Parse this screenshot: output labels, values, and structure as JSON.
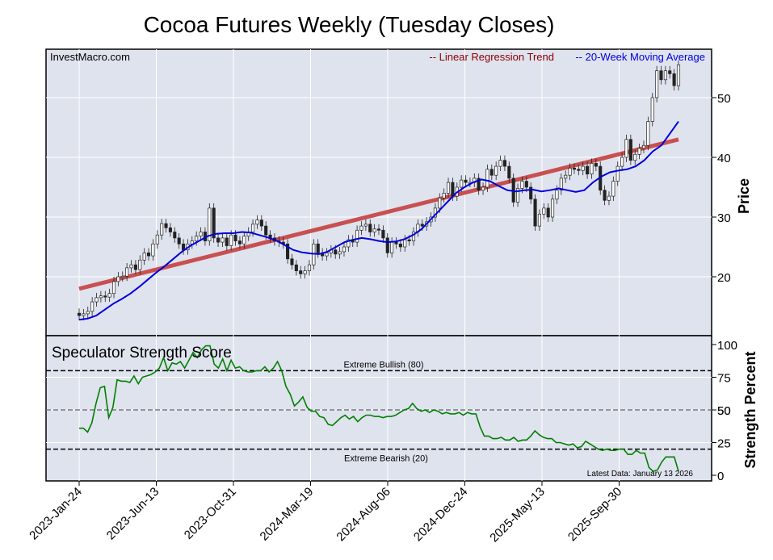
{
  "chart_data": [
    {
      "type": "candlestick",
      "title": "Cocoa Futures Weekly (Tuesday Closes)",
      "watermark": "InvestMacro.com",
      "ylabel": "Price",
      "ylim": [
        10,
        58
      ],
      "yticks": [
        20,
        30,
        40,
        50
      ],
      "xticks": [
        "2023-Jan-24",
        "2023-Jun-13",
        "2023-Oct-31",
        "2024-Mar-19",
        "2024-Aug-06",
        "2024-Dec-24",
        "2025-May-13",
        "2025-Sep-30"
      ],
      "grid": true,
      "legend_position": "top-right",
      "legend": [
        {
          "label": "-- Linear Regression Trend",
          "color": "#8b0000"
        },
        {
          "label": "-- 20-Week Moving Average",
          "color": "#0000dd"
        }
      ],
      "colors": {
        "background": "#dfe3ee",
        "regression": "#c85050",
        "moving_average": "#0000dd",
        "up_candle": "#ffffff",
        "down_candle": "#222222"
      },
      "closes": [
        13.5,
        13.8,
        14.2,
        15.8,
        16.5,
        16.8,
        16.6,
        17.2,
        19.2,
        20.0,
        20.1,
        21.5,
        22.0,
        21.2,
        22.8,
        24.0,
        23.5,
        25.5,
        27.0,
        28.9,
        28.2,
        27.5,
        26.5,
        25.5,
        24.5,
        25.5,
        26.0,
        26.8,
        27.5,
        26.0,
        31.5,
        26.5,
        25.8,
        26.5,
        25.2,
        27.0,
        26.0,
        25.5,
        26.8,
        27.5,
        28.8,
        29.5,
        28.5,
        27.0,
        26.5,
        26.0,
        25.8,
        25.5,
        23.0,
        22.0,
        21.0,
        20.5,
        21.0,
        22.0,
        25.5,
        24.0,
        23.5,
        24.0,
        24.5,
        23.8,
        24.2,
        25.0,
        26.2,
        25.8,
        27.8,
        28.5,
        28.8,
        27.5,
        28.0,
        27.8,
        26.5,
        24.0,
        25.8,
        25.5,
        25.0,
        26.2,
        26.0,
        27.5,
        28.8,
        28.5,
        29.2,
        30.0,
        31.5,
        33.2,
        34.0,
        35.8,
        33.5,
        35.0,
        36.2,
        35.8,
        35.8,
        36.5,
        34.5,
        35.0,
        38.0,
        37.0,
        38.5,
        39.5,
        38.5,
        36.5,
        32.5,
        34.8,
        36.0,
        35.0,
        33.0,
        28.5,
        30.5,
        31.5,
        30.0,
        33.0,
        34.5,
        36.5,
        37.0,
        38.2,
        38.0,
        37.8,
        38.5,
        37.2,
        39.0,
        38.5,
        34.5,
        32.8,
        33.5,
        36.0,
        38.5,
        40.0,
        43.0,
        39.5,
        40.5,
        41.5,
        42.0,
        46.0,
        50.0,
        54.5,
        53.0,
        54.5,
        54.0,
        52.0,
        55.5
      ],
      "trend": [
        18.0,
        43.0
      ],
      "moving_average": [
        12.8,
        13.0,
        13.5,
        14.5,
        15.5,
        16.3,
        17.2,
        18.3,
        19.5,
        20.7,
        21.8,
        23.0,
        24.2,
        25.2,
        26.0,
        26.8,
        27.2,
        27.3,
        27.3,
        27.5,
        27.4,
        27.0,
        26.6,
        26.1,
        25.3,
        24.5,
        24.1,
        23.9,
        23.8,
        24.2,
        25.0,
        25.8,
        26.2,
        26.5,
        26.3,
        26.0,
        25.8,
        25.9,
        26.3,
        27.0,
        28.0,
        29.5,
        31.0,
        32.5,
        34.0,
        35.0,
        35.8,
        36.3,
        36.0,
        35.2,
        34.5,
        34.3,
        34.5,
        34.6,
        34.3,
        34.5,
        34.8,
        34.5,
        34.2,
        34.5,
        35.8,
        36.8,
        37.5,
        37.8,
        38.0,
        38.5,
        39.5,
        41.0,
        42.0,
        44.0,
        46.0
      ]
    },
    {
      "type": "line",
      "title": "Speculator Strength Score",
      "ylabel": "Strength Percent",
      "ylim": [
        0,
        103
      ],
      "yticks": [
        0,
        25,
        50,
        75,
        100
      ],
      "extra_tick": "50",
      "lines": [
        {
          "label": "Extreme Bullish (80)",
          "value": 80
        },
        {
          "label": "Extreme Bearish (20)",
          "value": 20
        }
      ],
      "midline": 50,
      "footnote": "Latest Data: January 13 2026",
      "colors": {
        "line": "#008000",
        "background": "#dfe3ee"
      },
      "values": [
        36,
        36,
        33,
        40,
        55,
        67,
        68,
        44,
        52,
        73,
        72,
        72,
        71,
        76,
        70,
        75,
        76,
        77,
        79,
        82,
        90,
        80,
        86,
        85,
        87,
        82,
        88,
        94,
        90,
        96,
        99,
        99,
        85,
        82,
        89,
        80,
        88,
        82,
        83,
        80,
        79,
        79,
        80,
        80,
        83,
        79,
        82,
        87,
        80,
        68,
        62,
        53,
        56,
        60,
        52,
        49,
        49,
        45,
        44,
        39,
        38,
        41,
        44,
        46,
        43,
        45,
        41,
        44,
        46,
        46,
        45,
        45,
        44,
        45,
        45,
        46,
        48,
        50,
        51,
        55,
        51,
        49,
        50,
        48,
        50,
        49,
        47,
        48,
        47,
        47,
        48,
        46,
        48,
        47,
        47,
        37,
        30,
        30,
        28,
        28,
        29,
        27,
        27,
        29,
        26,
        27,
        27,
        30,
        34,
        31,
        29,
        28,
        28,
        25,
        25,
        24,
        23,
        24,
        21,
        22,
        26,
        24,
        22,
        20,
        19,
        20,
        19,
        19,
        20,
        20,
        16,
        16,
        19,
        17,
        17,
        6,
        3,
        4,
        10,
        14,
        14,
        14,
        3
      ]
    }
  ]
}
